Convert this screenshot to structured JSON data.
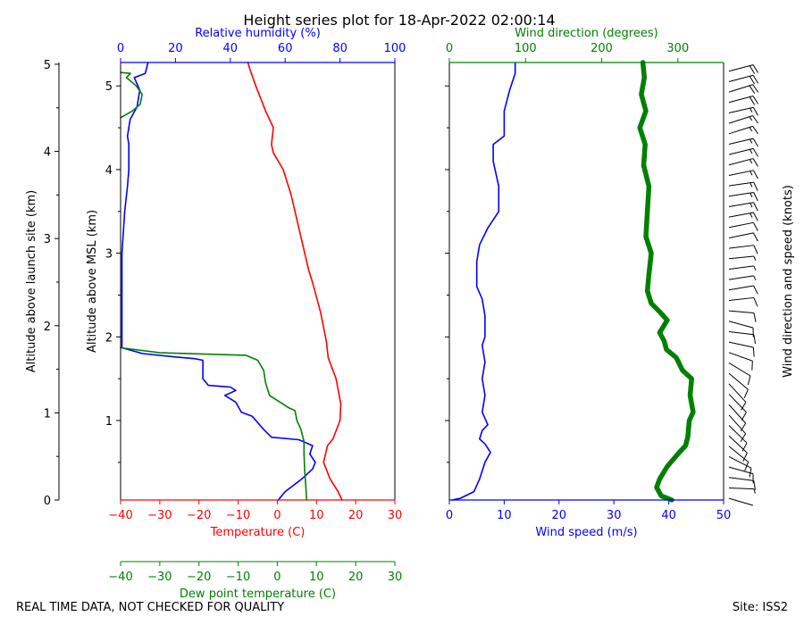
{
  "title": "Height series plot for 18-Apr-2022 02:00:14",
  "footer": {
    "left": "REAL TIME DATA, NOT CHECKED FOR QUALITY",
    "right": "Site: ISS2"
  },
  "colors": {
    "temperature": "#ff0000",
    "rh": "#0000ff",
    "dewpoint": "#008000",
    "wind_speed": "#0000ff",
    "wind_dir": "#008000",
    "axis": "#000000"
  },
  "chart_data": [
    {
      "type": "line",
      "panel": "thermodynamic",
      "launch_alt_label": "Altitude above launch site (km)",
      "ylabel": "Altitude above MSL (km)",
      "xlabel": "Temperature (C)",
      "x2label": "Relative humidity (%)",
      "x3label": "Dew point temperature (C)",
      "xlim": [
        -40,
        30
      ],
      "x2lim": [
        0,
        100
      ],
      "ylim_msl": [
        0.05,
        5.28
      ],
      "xticks": [
        -40,
        -30,
        -20,
        -10,
        0,
        10,
        20,
        30
      ],
      "x2ticks": [
        0,
        20,
        40,
        60,
        80,
        100
      ],
      "yticks_msl": [
        1,
        2,
        3,
        4,
        5
      ],
      "yticks_launch": [
        0,
        1,
        2,
        3,
        4,
        5
      ],
      "series": [
        {
          "name": "Temperature",
          "unit": "C",
          "points": [
            [
              16.5,
              0.05
            ],
            [
              15.5,
              0.15
            ],
            [
              13.5,
              0.3
            ],
            [
              11.8,
              0.5
            ],
            [
              12.8,
              0.7
            ],
            [
              14.2,
              0.78
            ],
            [
              16.0,
              1.0
            ],
            [
              16.2,
              1.2
            ],
            [
              15.0,
              1.5
            ],
            [
              13.0,
              1.75
            ],
            [
              12.5,
              1.95
            ],
            [
              11.0,
              2.3
            ],
            [
              9.0,
              2.65
            ],
            [
              8.0,
              2.8
            ],
            [
              6.5,
              3.1
            ],
            [
              5.0,
              3.4
            ],
            [
              3.5,
              3.7
            ],
            [
              1.5,
              4.0
            ],
            [
              -1.0,
              4.2
            ],
            [
              -1.5,
              4.3
            ],
            [
              -1.0,
              4.5
            ],
            [
              -3.0,
              4.7
            ],
            [
              -5.5,
              5.0
            ],
            [
              -7.0,
              5.2
            ],
            [
              -7.5,
              5.28
            ]
          ]
        },
        {
          "name": "Relative humidity",
          "unit": "%",
          "axis": "top",
          "points": [
            [
              57.5,
              0.05
            ],
            [
              60,
              0.15
            ],
            [
              66,
              0.3
            ],
            [
              70,
              0.42
            ],
            [
              71,
              0.5
            ],
            [
              69,
              0.6
            ],
            [
              70,
              0.7
            ],
            [
              65,
              0.77
            ],
            [
              55,
              0.8
            ],
            [
              52,
              0.9
            ],
            [
              48,
              1.05
            ],
            [
              44,
              1.1
            ],
            [
              42,
              1.22
            ],
            [
              38,
              1.3
            ],
            [
              42,
              1.36
            ],
            [
              40,
              1.4
            ],
            [
              32,
              1.42
            ],
            [
              30,
              1.5
            ],
            [
              30,
              1.6
            ],
            [
              30,
              1.72
            ],
            [
              27,
              1.74
            ],
            [
              20,
              1.76
            ],
            [
              8,
              1.8
            ],
            [
              0.5,
              1.87
            ],
            [
              0.5,
              2.2
            ],
            [
              0.5,
              3.0
            ],
            [
              1.5,
              3.5
            ],
            [
              2.5,
              3.8
            ],
            [
              3,
              4.0
            ],
            [
              3,
              4.3
            ],
            [
              2.5,
              4.4
            ],
            [
              3.5,
              4.6
            ],
            [
              6,
              4.75
            ],
            [
              7,
              4.95
            ],
            [
              5,
              5.1
            ],
            [
              9,
              5.15
            ],
            [
              10,
              5.28
            ]
          ]
        },
        {
          "name": "Dew point",
          "unit": "C",
          "points": [
            [
              7.5,
              0.05
            ],
            [
              7.3,
              0.2
            ],
            [
              7.0,
              0.4
            ],
            [
              6.8,
              0.6
            ],
            [
              6.8,
              0.75
            ],
            [
              6.0,
              0.9
            ],
            [
              5.0,
              1.0
            ],
            [
              4.5,
              1.12
            ],
            [
              3.0,
              1.15
            ],
            [
              -2.0,
              1.3
            ],
            [
              -3.0,
              1.45
            ],
            [
              -3.5,
              1.6
            ],
            [
              -5.0,
              1.72
            ],
            [
              -8.0,
              1.78
            ],
            [
              -30.0,
              1.81
            ],
            [
              -40.0,
              1.87
            ]
          ]
        },
        {
          "name": "Dew point (upper)",
          "unit": "C",
          "points": [
            [
              -40.0,
              4.62
            ],
            [
              -37.0,
              4.7
            ],
            [
              -35.0,
              4.78
            ],
            [
              -34.5,
              4.9
            ],
            [
              -36.0,
              5.0
            ],
            [
              -38.5,
              5.1
            ],
            [
              -37.5,
              5.15
            ],
            [
              -40.0,
              5.16
            ]
          ]
        }
      ]
    },
    {
      "type": "line",
      "panel": "wind",
      "xlabel": "Wind speed (m/s)",
      "x2label": "Wind direction (degrees)",
      "barb_label": "Wind direction and speed (knots)",
      "xlim": [
        0,
        50
      ],
      "x2lim": [
        0,
        360
      ],
      "xticks": [
        0,
        10,
        20,
        30,
        40,
        50
      ],
      "x2ticks": [
        0,
        100,
        200,
        300
      ],
      "series": [
        {
          "name": "Wind speed",
          "unit": "m/s",
          "points": [
            [
              0.5,
              0.05
            ],
            [
              2.0,
              0.07
            ],
            [
              4.5,
              0.15
            ],
            [
              5.5,
              0.3
            ],
            [
              6.5,
              0.5
            ],
            [
              7.5,
              0.62
            ],
            [
              6.5,
              0.72
            ],
            [
              5.5,
              0.78
            ],
            [
              6.0,
              0.88
            ],
            [
              7.0,
              0.95
            ],
            [
              6.0,
              1.1
            ],
            [
              6.5,
              1.3
            ],
            [
              6.0,
              1.5
            ],
            [
              6.5,
              1.7
            ],
            [
              6.0,
              1.9
            ],
            [
              6.5,
              2.0
            ],
            [
              6.5,
              2.25
            ],
            [
              6.0,
              2.45
            ],
            [
              5.0,
              2.6
            ],
            [
              5.0,
              2.9
            ],
            [
              5.5,
              3.1
            ],
            [
              7.0,
              3.3
            ],
            [
              9.0,
              3.5
            ],
            [
              9.0,
              3.8
            ],
            [
              8.0,
              4.1
            ],
            [
              8.0,
              4.3
            ],
            [
              10.0,
              4.4
            ],
            [
              10.0,
              4.7
            ],
            [
              11.0,
              4.95
            ],
            [
              12.0,
              5.15
            ],
            [
              12.0,
              5.28
            ]
          ]
        },
        {
          "name": "Wind direction",
          "unit": "degrees",
          "points": [
            [
              292,
              0.05
            ],
            [
              278,
              0.1
            ],
            [
              272,
              0.2
            ],
            [
              276,
              0.3
            ],
            [
              286,
              0.45
            ],
            [
              300,
              0.6
            ],
            [
              310,
              0.7
            ],
            [
              313,
              0.8
            ],
            [
              315,
              1.0
            ],
            [
              320,
              1.1
            ],
            [
              316,
              1.3
            ],
            [
              318,
              1.5
            ],
            [
              306,
              1.6
            ],
            [
              298,
              1.75
            ],
            [
              285,
              1.85
            ],
            [
              282,
              1.95
            ],
            [
              276,
              2.05
            ],
            [
              286,
              2.2
            ],
            [
              276,
              2.3
            ],
            [
              265,
              2.4
            ],
            [
              260,
              2.55
            ],
            [
              262,
              2.75
            ],
            [
              265,
              3.0
            ],
            [
              258,
              3.2
            ],
            [
              260,
              3.5
            ],
            [
              262,
              3.8
            ],
            [
              255,
              4.05
            ],
            [
              257,
              4.3
            ],
            [
              250,
              4.5
            ],
            [
              258,
              4.7
            ],
            [
              252,
              4.9
            ],
            [
              256,
              5.1
            ],
            [
              254,
              5.28
            ]
          ]
        }
      ]
    }
  ]
}
